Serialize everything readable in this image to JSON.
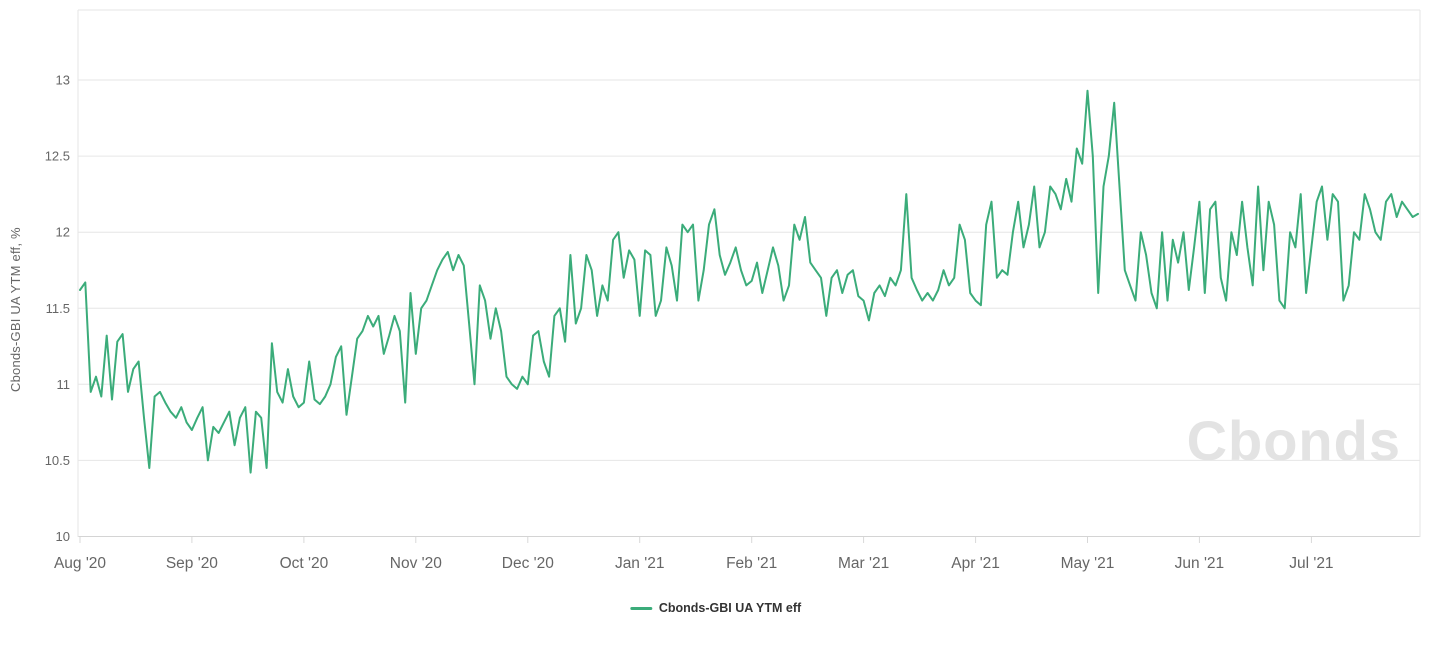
{
  "watermark": {
    "text": "Cbonds"
  },
  "legend": {
    "label": "Cbonds-GBI UA YTM eff"
  },
  "colors": {
    "series_green": "#3BAC7A",
    "gridline": "#e6e6e6",
    "axis_line": "#d4d4d4",
    "tick_label": "#666666",
    "watermark_gray": "#e3e3e3"
  },
  "chart_data": {
    "type": "line",
    "title": "",
    "xlabel": "",
    "ylabel": "Cbonds-GBI UA YTM eff, %",
    "ylim": [
      10,
      13.45
    ],
    "y_ticks": [
      10,
      10.5,
      11,
      11.5,
      12,
      12.5,
      13
    ],
    "grid": "horizontal",
    "legend_position": "bottom-center",
    "x_tick_labels": [
      "Aug '20",
      "Sep '20",
      "Oct '20",
      "Nov '20",
      "Dec '20",
      "Jan '21",
      "Feb '21",
      "Mar '21",
      "Apr '21",
      "May '21",
      "Jun '21",
      "Jul '21"
    ],
    "x_tick_indices": [
      0,
      21,
      42,
      63,
      84,
      105,
      126,
      147,
      168,
      189,
      210,
      231
    ],
    "series": [
      {
        "name": "Cbonds-GBI UA YTM eff",
        "color": "#3BAC7A",
        "values": [
          11.62,
          11.67,
          10.95,
          11.05,
          10.92,
          11.32,
          10.9,
          11.28,
          11.33,
          10.95,
          11.1,
          11.15,
          10.78,
          10.45,
          10.92,
          10.95,
          10.88,
          10.82,
          10.78,
          10.85,
          10.75,
          10.7,
          10.78,
          10.85,
          10.5,
          10.72,
          10.68,
          10.75,
          10.82,
          10.6,
          10.78,
          10.85,
          10.42,
          10.82,
          10.78,
          10.45,
          11.27,
          10.95,
          10.88,
          11.1,
          10.92,
          10.85,
          10.88,
          11.15,
          10.9,
          10.87,
          10.92,
          11.0,
          11.18,
          11.25,
          10.8,
          11.05,
          11.3,
          11.35,
          11.45,
          11.38,
          11.45,
          11.2,
          11.32,
          11.45,
          11.35,
          10.88,
          11.6,
          11.2,
          11.5,
          11.55,
          11.65,
          11.75,
          11.82,
          11.87,
          11.75,
          11.85,
          11.78,
          11.4,
          11.0,
          11.65,
          11.55,
          11.3,
          11.5,
          11.35,
          11.05,
          11.0,
          10.97,
          11.05,
          11.0,
          11.32,
          11.35,
          11.15,
          11.05,
          11.45,
          11.5,
          11.28,
          11.85,
          11.4,
          11.5,
          11.85,
          11.75,
          11.45,
          11.65,
          11.55,
          11.95,
          12.0,
          11.7,
          11.88,
          11.82,
          11.45,
          11.88,
          11.85,
          11.45,
          11.55,
          11.9,
          11.78,
          11.55,
          12.05,
          12.0,
          12.05,
          11.55,
          11.75,
          12.05,
          12.15,
          11.85,
          11.72,
          11.8,
          11.9,
          11.75,
          11.65,
          11.68,
          11.8,
          11.6,
          11.75,
          11.9,
          11.78,
          11.55,
          11.65,
          12.05,
          11.95,
          12.1,
          11.8,
          11.75,
          11.7,
          11.45,
          11.7,
          11.75,
          11.6,
          11.72,
          11.75,
          11.58,
          11.55,
          11.42,
          11.6,
          11.65,
          11.58,
          11.7,
          11.65,
          11.75,
          12.25,
          11.7,
          11.62,
          11.55,
          11.6,
          11.55,
          11.62,
          11.75,
          11.65,
          11.7,
          12.05,
          11.95,
          11.6,
          11.55,
          11.52,
          12.05,
          12.2,
          11.7,
          11.75,
          11.72,
          12.0,
          12.2,
          11.9,
          12.05,
          12.3,
          11.9,
          12.0,
          12.3,
          12.25,
          12.15,
          12.35,
          12.2,
          12.55,
          12.45,
          12.93,
          12.5,
          11.6,
          12.3,
          12.5,
          12.85,
          12.3,
          11.75,
          11.65,
          11.55,
          12.0,
          11.85,
          11.6,
          11.5,
          12.0,
          11.55,
          11.95,
          11.8,
          12.0,
          11.62,
          11.9,
          12.2,
          11.6,
          12.15,
          12.2,
          11.7,
          11.55,
          12.0,
          11.85,
          12.2,
          11.9,
          11.65,
          12.3,
          11.75,
          12.2,
          12.05,
          11.55,
          11.5,
          12.0,
          11.9,
          12.25,
          11.6,
          11.9,
          12.2,
          12.3,
          11.95,
          12.25,
          12.2,
          11.55,
          11.65,
          12.0,
          11.95,
          12.25,
          12.15,
          12.0,
          11.95,
          12.2,
          12.25,
          12.1,
          12.2,
          12.15,
          12.1,
          12.12
        ]
      }
    ]
  }
}
